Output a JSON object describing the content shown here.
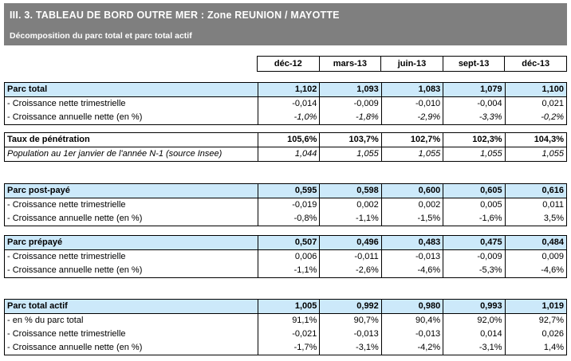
{
  "banner": {
    "title": "III. 3. TABLEAU DE BORD OUTRE MER : Zone REUNION / MAYOTTE",
    "subtitle": "Décomposition du parc total et parc total actif"
  },
  "colors": {
    "banner_bg": "#7f7f7f",
    "banner_text": "#ffffff",
    "section_header_bg": "#cce9fa",
    "border": "#000000"
  },
  "table": {
    "columns": [
      "déc-12",
      "mars-13",
      "juin-13",
      "sept-13",
      "déc-13"
    ],
    "sections": [
      {
        "id": "parc-total",
        "rows": [
          {
            "label": "Parc total",
            "style": "header",
            "values": [
              "1,102",
              "1,093",
              "1,083",
              "1,079",
              "1,100"
            ]
          },
          {
            "label": "- Croissance nette trimestrielle",
            "style": "normal",
            "values": [
              "-0,014",
              "-0,009",
              "-0,010",
              "-0,004",
              "0,021"
            ]
          },
          {
            "label": "- Croissance annuelle nette (en %)",
            "style": "italic-values",
            "values": [
              "-1,0%",
              "-1,8%",
              "-2,9%",
              "-3,3%",
              "-0,2%"
            ]
          }
        ]
      },
      {
        "id": "taux-de-penetration",
        "rows": [
          {
            "label": "Taux de pénétration",
            "style": "subheader",
            "values": [
              "105,6%",
              "103,7%",
              "102,7%",
              "102,3%",
              "104,3%"
            ]
          },
          {
            "label": "Population au 1er janvier de l'année N-1 (source Insee)",
            "style": "italic",
            "values": [
              "1,044",
              "1,055",
              "1,055",
              "1,055",
              "1,055"
            ]
          }
        ]
      },
      {
        "id": "parc-post-paye",
        "rows": [
          {
            "label": "Parc post-payé",
            "style": "header",
            "values": [
              "0,595",
              "0,598",
              "0,600",
              "0,605",
              "0,616"
            ]
          },
          {
            "label": "- Croissance nette trimestrielle",
            "style": "normal",
            "values": [
              "-0,019",
              "0,002",
              "0,002",
              "0,005",
              "0,011"
            ]
          },
          {
            "label": "- Croissance annuelle nette (en %)",
            "style": "normal",
            "values": [
              "-0,8%",
              "-1,1%",
              "-1,5%",
              "-1,6%",
              "3,5%"
            ]
          }
        ]
      },
      {
        "id": "parc-prepaye",
        "rows": [
          {
            "label": "Parc prépayé",
            "style": "header",
            "values": [
              "0,507",
              "0,496",
              "0,483",
              "0,475",
              "0,484"
            ]
          },
          {
            "label": "- Croissance nette trimestrielle",
            "style": "normal",
            "values": [
              "0,006",
              "-0,011",
              "-0,013",
              "-0,009",
              "0,009"
            ]
          },
          {
            "label": "- Croissance annuelle nette (en %)",
            "style": "normal",
            "values": [
              "-1,1%",
              "-2,6%",
              "-4,6%",
              "-5,3%",
              "-4,6%"
            ]
          }
        ]
      },
      {
        "id": "parc-total-actif",
        "rows": [
          {
            "label": "Parc total actif",
            "style": "header",
            "values": [
              "1,005",
              "0,992",
              "0,980",
              "0,993",
              "1,019"
            ]
          },
          {
            "label": "- en % du parc total",
            "style": "normal",
            "values": [
              "91,1%",
              "90,7%",
              "90,4%",
              "92,0%",
              "92,7%"
            ]
          },
          {
            "label": "- Croissance nette trimestrielle",
            "style": "normal",
            "values": [
              "-0,021",
              "-0,013",
              "-0,013",
              "0,014",
              "0,026"
            ]
          },
          {
            "label": "- Croissance annuelle nette (en %)",
            "style": "normal",
            "values": [
              "-1,7%",
              "-3,1%",
              "-4,2%",
              "-3,1%",
              "1,4%"
            ]
          }
        ]
      }
    ]
  }
}
